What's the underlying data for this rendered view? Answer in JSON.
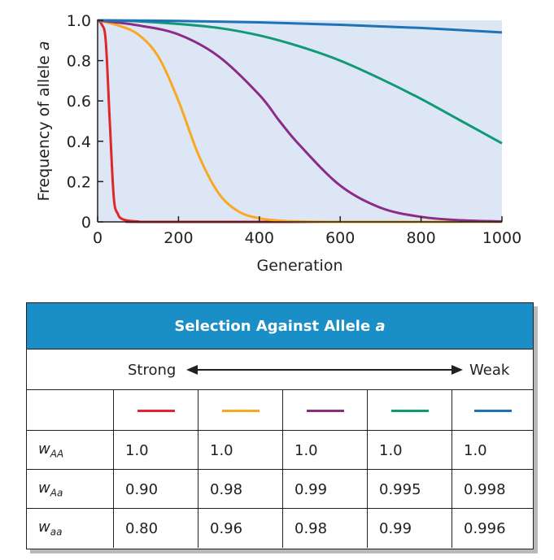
{
  "chart_data": {
    "type": "line",
    "title": "",
    "xlabel": "Generation",
    "ylabel_main": "Frequency of allele ",
    "ylabel_italic": "a",
    "xlim": [
      0,
      1000
    ],
    "ylim": [
      0,
      1.0
    ],
    "xticks": [
      0,
      200,
      400,
      600,
      800,
      1000
    ],
    "xtick_labels": [
      "0",
      "200",
      "400",
      "600",
      "800",
      "1000"
    ],
    "yticks": [
      0,
      0.2,
      0.4,
      0.6,
      0.8,
      1.0
    ],
    "ytick_labels": [
      "0",
      "0.2",
      "0.4",
      "0.6",
      "0.8",
      "1.0"
    ],
    "grid": false,
    "plot_background": "#dde6f4",
    "series": [
      {
        "color": "#e0262b",
        "x": [
          0,
          10,
          20,
          30,
          40,
          50,
          60,
          80,
          100,
          150,
          1000
        ],
        "y": [
          1.0,
          0.98,
          0.9,
          0.5,
          0.12,
          0.04,
          0.015,
          0.005,
          0.002,
          0.0,
          0.0
        ]
      },
      {
        "color": "#f8a823",
        "x": [
          0,
          50,
          100,
          150,
          200,
          250,
          300,
          350,
          400,
          450,
          500,
          600,
          1000
        ],
        "y": [
          1.0,
          0.975,
          0.93,
          0.82,
          0.6,
          0.33,
          0.14,
          0.05,
          0.018,
          0.006,
          0.002,
          0.0,
          0.0
        ]
      },
      {
        "color": "#8b2c87",
        "x": [
          0,
          100,
          200,
          300,
          400,
          450,
          500,
          600,
          700,
          800,
          900,
          1000
        ],
        "y": [
          1.0,
          0.975,
          0.93,
          0.82,
          0.63,
          0.5,
          0.38,
          0.18,
          0.07,
          0.025,
          0.008,
          0.002
        ]
      },
      {
        "color": "#109a73",
        "x": [
          0,
          100,
          200,
          300,
          400,
          500,
          600,
          700,
          800,
          900,
          1000
        ],
        "y": [
          1.0,
          0.995,
          0.982,
          0.962,
          0.925,
          0.87,
          0.8,
          0.71,
          0.61,
          0.5,
          0.39
        ]
      },
      {
        "color": "#1d72b8",
        "x": [
          0,
          200,
          400,
          600,
          800,
          1000
        ],
        "y": [
          1.0,
          0.997,
          0.99,
          0.978,
          0.962,
          0.94
        ]
      }
    ]
  },
  "table": {
    "title_main": "Selection Against Allele ",
    "title_italic": "a",
    "strong_label": "Strong",
    "weak_label": "Weak",
    "colors": [
      "#e0262b",
      "#f8a823",
      "#8b2c87",
      "#109a73",
      "#1d72b8"
    ],
    "rows": [
      {
        "w": "w",
        "sub": "AA",
        "values": [
          "1.0",
          "1.0",
          "1.0",
          "1.0",
          "1.0"
        ]
      },
      {
        "w": "w",
        "sub": "Aa",
        "values": [
          "0.90",
          "0.98",
          "0.99",
          "0.995",
          "0.998"
        ]
      },
      {
        "w": "w",
        "sub": "aa",
        "values": [
          "0.80",
          "0.96",
          "0.98",
          "0.99",
          "0.996"
        ]
      }
    ]
  }
}
